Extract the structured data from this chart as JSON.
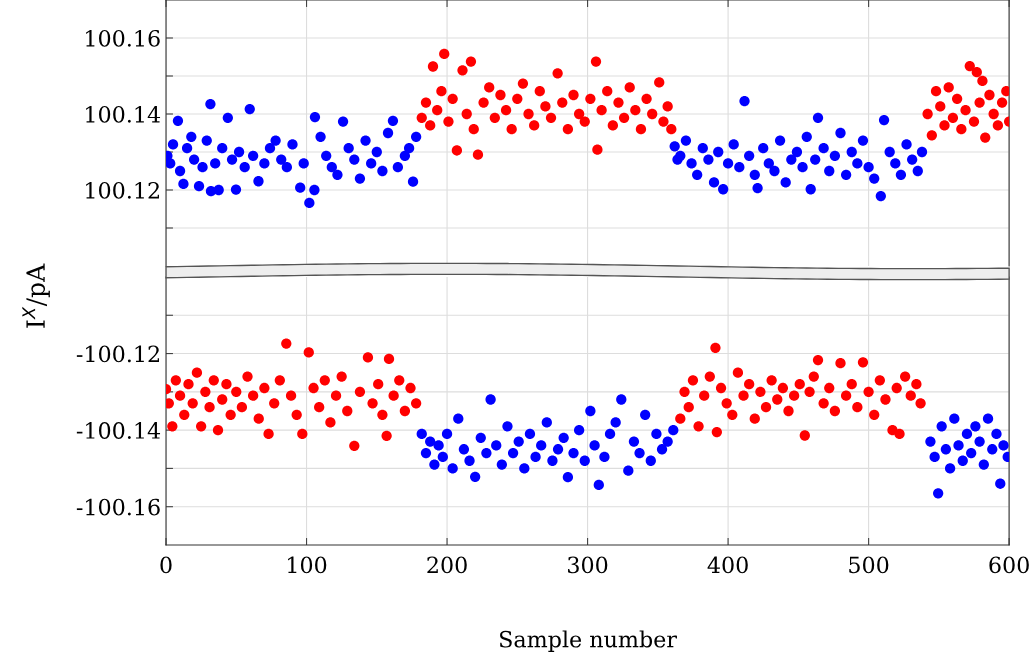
{
  "chart_data": [
    {
      "type": "scatter",
      "ylabel": "I$^{X}$/pA",
      "xlim": [
        0,
        600
      ],
      "xticks": [
        0,
        100,
        200,
        300,
        400,
        500,
        600
      ],
      "ylim": [
        100.1,
        100.17
      ],
      "yticks": [
        {
          "value": 100.11,
          "label": null
        },
        {
          "value": 100.12,
          "label": "100.12"
        },
        {
          "value": 100.13,
          "label": null
        },
        {
          "value": 100.14,
          "label": "100.14"
        },
        {
          "value": 100.15,
          "label": null
        },
        {
          "value": 100.16,
          "label": "100.16"
        }
      ],
      "grid": true,
      "marker": "circle",
      "tick_labels": "y",
      "series": [
        {
          "color": "#0000ff",
          "x": [
            1,
            3,
            5,
            8.5,
            10,
            12.4,
            15,
            18,
            20,
            23.5,
            26,
            29,
            31.6,
            32,
            35,
            37.5,
            40,
            44,
            47,
            49.8,
            52,
            56,
            59.6,
            62,
            65.8,
            70,
            74,
            78,
            82,
            86,
            90,
            95.5,
            98,
            102,
            105.6,
            106,
            110,
            114,
            118,
            122,
            126,
            130,
            134,
            138,
            142,
            146,
            150,
            154,
            158,
            161.5,
            165,
            170,
            173,
            175.8,
            178,
            362,
            364,
            366,
            370,
            374,
            378,
            382,
            386,
            390,
            393,
            396.5,
            400,
            404,
            408,
            411.7,
            415,
            419,
            421,
            425,
            429,
            433,
            437,
            441,
            445,
            449,
            453,
            456,
            458.8,
            462,
            464,
            468,
            472,
            476,
            480,
            484,
            488,
            492,
            496,
            500,
            504,
            508.7,
            511,
            515,
            519,
            523,
            527,
            531,
            535,
            538
          ],
          "values": [
            100.129,
            100.127,
            100.132,
            100.1382,
            100.125,
            100.1216,
            100.131,
            100.134,
            100.128,
            100.121,
            100.126,
            100.133,
            100.1426,
            100.1197,
            100.127,
            100.12,
            100.131,
            100.139,
            100.128,
            100.1201,
            100.13,
            100.126,
            100.1413,
            100.129,
            100.1223,
            100.127,
            100.131,
            100.133,
            100.128,
            100.126,
            100.132,
            100.1206,
            100.127,
            100.1166,
            100.12,
            100.1392,
            100.134,
            100.129,
            100.126,
            100.124,
            100.138,
            100.131,
            100.128,
            100.123,
            100.133,
            100.127,
            100.13,
            100.125,
            100.135,
            100.1382,
            100.126,
            100.129,
            100.131,
            100.1222,
            100.134,
            100.1315,
            100.128,
            100.129,
            100.133,
            100.127,
            100.124,
            100.131,
            100.128,
            100.122,
            100.13,
            100.1202,
            100.127,
            100.132,
            100.126,
            100.1434,
            100.129,
            100.124,
            100.1205,
            100.131,
            100.127,
            100.125,
            100.133,
            100.122,
            100.128,
            100.13,
            100.126,
            100.134,
            100.1202,
            100.128,
            100.139,
            100.131,
            100.125,
            100.129,
            100.135,
            100.124,
            100.13,
            100.127,
            100.133,
            100.126,
            100.123,
            100.1184,
            100.1384,
            100.13,
            100.127,
            100.124,
            100.132,
            100.128,
            100.125,
            100.13
          ]
        },
        {
          "color": "#ff0000",
          "x": [
            182,
            185,
            188,
            190,
            193,
            196,
            198,
            201,
            204,
            207,
            211,
            214,
            217,
            219,
            222,
            226,
            230,
            234,
            238,
            242,
            246,
            250,
            254,
            258,
            262,
            266,
            270,
            274,
            278.7,
            282,
            286,
            290,
            294,
            298,
            302,
            306,
            307,
            310,
            314,
            318,
            322,
            326,
            330,
            334,
            338,
            342,
            346,
            351,
            354,
            357,
            359.6,
            542,
            545,
            548,
            551,
            554,
            557,
            560,
            563,
            566,
            569,
            572,
            575,
            577,
            579,
            581,
            583,
            586,
            589,
            592,
            595,
            598,
            600
          ],
          "values": [
            100.139,
            100.143,
            100.137,
            100.1525,
            100.141,
            100.146,
            100.1558,
            100.138,
            100.144,
            100.1304,
            100.1515,
            100.14,
            100.1538,
            100.136,
            100.1293,
            100.143,
            100.147,
            100.139,
            100.145,
            100.141,
            100.136,
            100.144,
            100.148,
            100.14,
            100.137,
            100.146,
            100.142,
            100.139,
            100.1507,
            100.143,
            100.136,
            100.145,
            100.14,
            100.138,
            100.144,
            100.1538,
            100.1306,
            100.141,
            100.146,
            100.137,
            100.143,
            100.139,
            100.147,
            100.141,
            100.136,
            100.144,
            100.14,
            100.1483,
            100.138,
            100.142,
            100.136,
            100.14,
            100.1344,
            100.146,
            100.142,
            100.137,
            100.147,
            100.139,
            100.144,
            100.136,
            100.141,
            100.1526,
            100.138,
            100.151,
            100.143,
            100.1487,
            100.1338,
            100.145,
            100.14,
            100.137,
            100.143,
            100.146,
            100.138
          ]
        }
      ]
    },
    {
      "type": "scatter",
      "xlabel": "Sample number",
      "xlim": [
        0,
        600
      ],
      "xticks": [
        0,
        100,
        200,
        300,
        400,
        500,
        600
      ],
      "ylim": [
        -100.17,
        -100.1
      ],
      "yticks": [
        {
          "value": -100.16,
          "label": "-100.16"
        },
        {
          "value": -100.15,
          "label": null
        },
        {
          "value": -100.14,
          "label": "-100.14"
        },
        {
          "value": -100.13,
          "label": null
        },
        {
          "value": -100.12,
          "label": "-100.12"
        },
        {
          "value": -100.11,
          "label": null
        }
      ],
      "grid": true,
      "marker": "circle",
      "series": [
        {
          "color": "#ff0000",
          "x": [
            0,
            2,
            4.5,
            7,
            10,
            13,
            16,
            19,
            22,
            25,
            28,
            31,
            34,
            37,
            40,
            43,
            46,
            50,
            54,
            58,
            62,
            66,
            70,
            73,
            77,
            81,
            85.6,
            89,
            93,
            97,
            101.6,
            105,
            109,
            113,
            117,
            121,
            125,
            129,
            134,
            138,
            143.7,
            147,
            151,
            154,
            157,
            158.7,
            162,
            166,
            170,
            174,
            178,
            366,
            369,
            372,
            375,
            379,
            383,
            387,
            391,
            392,
            395,
            399,
            403,
            407,
            411,
            415,
            419,
            423,
            427,
            431,
            435,
            439,
            443,
            447,
            451,
            454.6,
            458,
            461,
            464,
            468,
            472,
            476,
            480,
            484,
            488,
            492,
            496,
            500,
            504,
            508,
            512,
            517,
            520,
            522,
            526,
            530,
            534,
            537
          ],
          "values": [
            -100.1293,
            -100.133,
            -100.139,
            -100.127,
            -100.131,
            -100.136,
            -100.128,
            -100.133,
            -100.125,
            -100.139,
            -100.13,
            -100.134,
            -100.127,
            -100.14,
            -100.132,
            -100.128,
            -100.136,
            -100.13,
            -100.134,
            -100.126,
            -100.131,
            -100.137,
            -100.129,
            -100.141,
            -100.133,
            -100.127,
            -100.1174,
            -100.131,
            -100.136,
            -100.141,
            -100.1197,
            -100.129,
            -100.134,
            -100.127,
            -100.138,
            -100.131,
            -100.126,
            -100.135,
            -100.1441,
            -100.13,
            -100.121,
            -100.133,
            -100.128,
            -100.136,
            -100.1415,
            -100.1214,
            -100.131,
            -100.127,
            -100.135,
            -100.129,
            -100.133,
            -100.137,
            -100.13,
            -100.134,
            -100.127,
            -100.139,
            -100.131,
            -100.126,
            -100.1185,
            -100.1405,
            -100.129,
            -100.133,
            -100.136,
            -100.125,
            -100.131,
            -100.128,
            -100.137,
            -100.13,
            -100.134,
            -100.127,
            -100.132,
            -100.129,
            -100.135,
            -100.131,
            -100.128,
            -100.1414,
            -100.13,
            -100.126,
            -100.1217,
            -100.133,
            -100.129,
            -100.135,
            -100.1225,
            -100.131,
            -100.128,
            -100.134,
            -100.1223,
            -100.13,
            -100.136,
            -100.127,
            -100.132,
            -100.14,
            -100.129,
            -100.141,
            -100.126,
            -100.131,
            -100.128,
            -100.133
          ]
        },
        {
          "color": "#0000ff",
          "x": [
            182,
            185,
            188,
            191,
            194,
            197,
            200,
            204,
            208,
            212,
            216,
            220,
            224,
            228,
            231,
            235,
            239,
            243,
            247,
            251,
            255,
            259,
            263,
            267,
            271,
            275,
            279,
            283,
            286,
            290,
            294,
            298,
            302,
            305,
            308,
            312,
            316,
            320,
            324,
            329,
            333,
            337,
            341,
            345,
            349,
            353,
            357,
            361,
            544,
            547,
            549.5,
            552,
            555,
            558,
            561,
            564,
            567,
            570,
            573,
            576,
            579,
            582,
            585,
            588,
            591,
            593.7,
            596,
            599
          ],
          "values": [
            -100.141,
            -100.146,
            -100.143,
            -100.149,
            -100.144,
            -100.147,
            -100.141,
            -100.15,
            -100.137,
            -100.145,
            -100.148,
            -100.1522,
            -100.142,
            -100.146,
            -100.132,
            -100.144,
            -100.149,
            -100.139,
            -100.146,
            -100.143,
            -100.15,
            -100.141,
            -100.147,
            -100.144,
            -100.138,
            -100.148,
            -100.145,
            -100.142,
            -100.1523,
            -100.146,
            -100.14,
            -100.148,
            -100.135,
            -100.144,
            -100.1543,
            -100.147,
            -100.141,
            -100.138,
            -100.132,
            -100.1506,
            -100.143,
            -100.146,
            -100.136,
            -100.148,
            -100.141,
            -100.145,
            -100.143,
            -100.14,
            -100.143,
            -100.147,
            -100.1565,
            -100.139,
            -100.145,
            -100.15,
            -100.137,
            -100.144,
            -100.148,
            -100.141,
            -100.146,
            -100.139,
            -100.143,
            -100.149,
            -100.137,
            -100.145,
            -100.141,
            -100.154,
            -100.144,
            -100.147
          ]
        }
      ]
    }
  ]
}
